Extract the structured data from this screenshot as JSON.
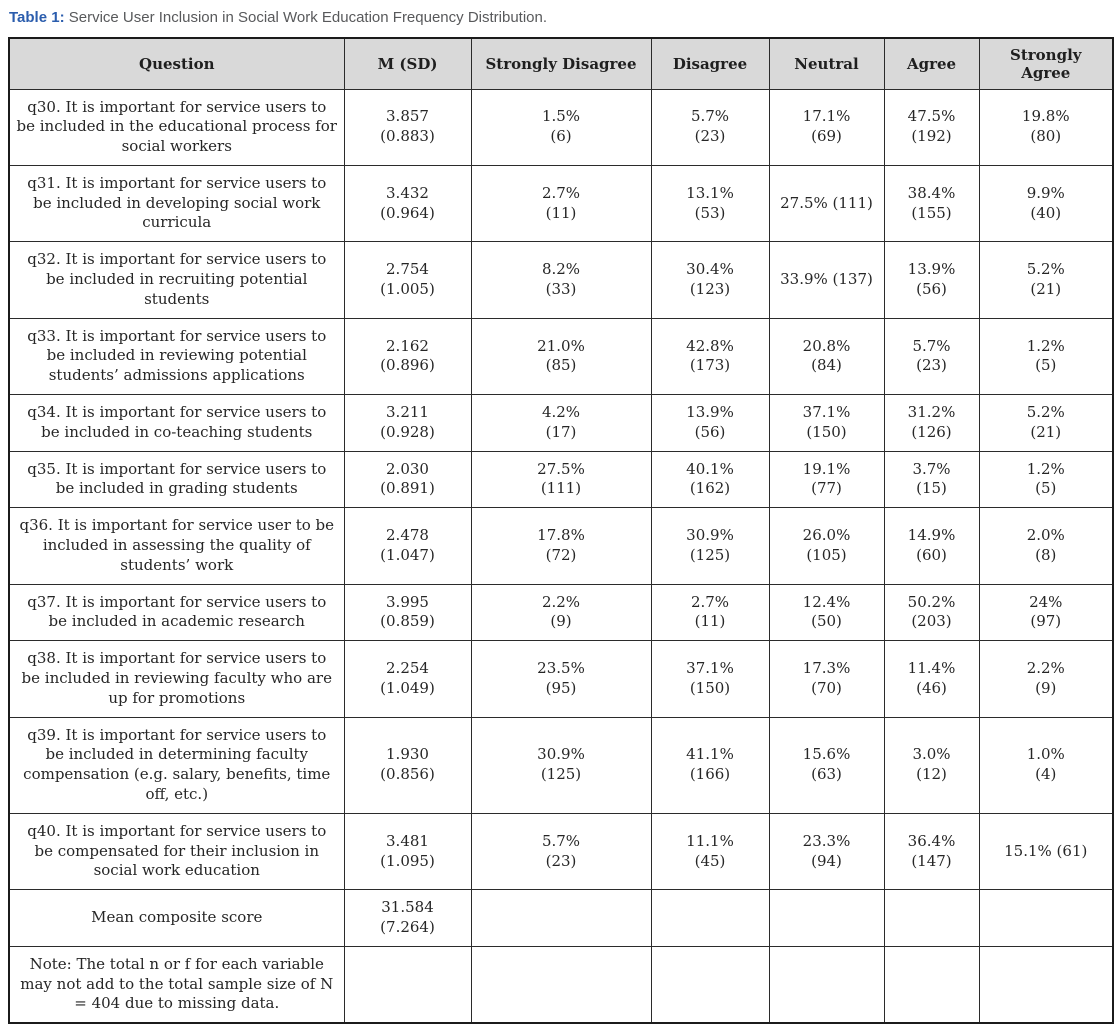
{
  "caption": {
    "label": "Table 1:",
    "text": " Service User Inclusion in Social Work Education Frequency Distribution."
  },
  "colors": {
    "caption_label_blue": "#2b5dad",
    "caption_text_gray": "#58595b",
    "header_background": "#d9d9d9",
    "table_border": "#1b1b1b",
    "body_text": "#262626"
  },
  "table": {
    "columns": [
      "Question",
      "M (SD)",
      "Strongly Disagree",
      "Disagree",
      "Neutral",
      "Agree",
      "Strongly Agree"
    ],
    "rows": [
      {
        "cells": [
          "q30. It is important for service users to be included in the educational process for social workers",
          "3.857\n(0.883)",
          "1.5%\n(6)",
          "5.7%\n(23)",
          "17.1%\n(69)",
          "47.5%\n(192)",
          "19.8%\n(80)"
        ]
      },
      {
        "cells": [
          "q31. It is important for service users to be included in developing social work curricula",
          "3.432\n(0.964)",
          "2.7%\n(11)",
          "13.1%\n(53)",
          "27.5% (111)",
          "38.4%\n(155)",
          "9.9%\n(40)"
        ]
      },
      {
        "cells": [
          "q32. It is important for service users to be included in recruiting potential students",
          "2.754\n(1.005)",
          "8.2%\n(33)",
          "30.4%\n(123)",
          "33.9% (137)",
          "13.9%\n(56)",
          "5.2%\n(21)"
        ]
      },
      {
        "cells": [
          "q33. It is important for service users to be included in reviewing potential students’ admissions applications",
          "2.162\n(0.896)",
          "21.0%\n(85)",
          "42.8%\n(173)",
          "20.8%\n(84)",
          "5.7%\n(23)",
          "1.2%\n(5)"
        ]
      },
      {
        "cells": [
          "q34. It is important for service users to be included in co-teaching students",
          "3.211\n(0.928)",
          "4.2%\n(17)",
          "13.9%\n(56)",
          "37.1%\n(150)",
          "31.2%\n(126)",
          "5.2%\n(21)"
        ]
      },
      {
        "cells": [
          "q35. It is important for service users to be included in grading students",
          "2.030\n(0.891)",
          "27.5%\n(111)",
          "40.1%\n(162)",
          "19.1%\n(77)",
          "3.7%\n(15)",
          "1.2%\n(5)"
        ]
      },
      {
        "cells": [
          "q36. It is important for service user to be included in assessing the quality of students’ work",
          "2.478\n(1.047)",
          "17.8%\n(72)",
          "30.9%\n(125)",
          "26.0%\n(105)",
          "14.9%\n(60)",
          "2.0%\n(8)"
        ]
      },
      {
        "cells": [
          "q37. It is important for service users to be included in academic research",
          "3.995\n(0.859)",
          "2.2%\n(9)",
          "2.7%\n(11)",
          "12.4%\n(50)",
          "50.2%\n(203)",
          "24%\n(97)"
        ]
      },
      {
        "cells": [
          "q38. It is important for service users to be included in reviewing faculty who are up for promotions",
          "2.254\n(1.049)",
          "23.5%\n(95)",
          "37.1%\n(150)",
          "17.3%\n(70)",
          "11.4%\n(46)",
          "2.2%\n(9)"
        ]
      },
      {
        "cells": [
          "q39. It is important for service users to be included in determining faculty compensation (e.g. salary, benefits, time off, etc.)",
          "1.930\n(0.856)",
          "30.9%\n(125)",
          "41.1%\n(166)",
          "15.6%\n(63)",
          "3.0%\n(12)",
          "1.0%\n(4)"
        ]
      },
      {
        "cells": [
          "q40. It is important for service users to be compensated for their inclusion in social work education",
          "3.481\n(1.095)",
          "5.7%\n(23)",
          "11.1%\n(45)",
          "23.3%\n(94)",
          "36.4%\n(147)",
          "15.1% (61)"
        ]
      },
      {
        "cells": [
          "Mean composite score",
          "31.584\n(7.264)",
          "",
          "",
          "",
          "",
          ""
        ]
      },
      {
        "cells": [
          "Note: The total n or f for each variable may not add to the total sample size of N = 404 due to missing data.",
          "",
          "",
          "",
          "",
          "",
          ""
        ]
      }
    ]
  }
}
